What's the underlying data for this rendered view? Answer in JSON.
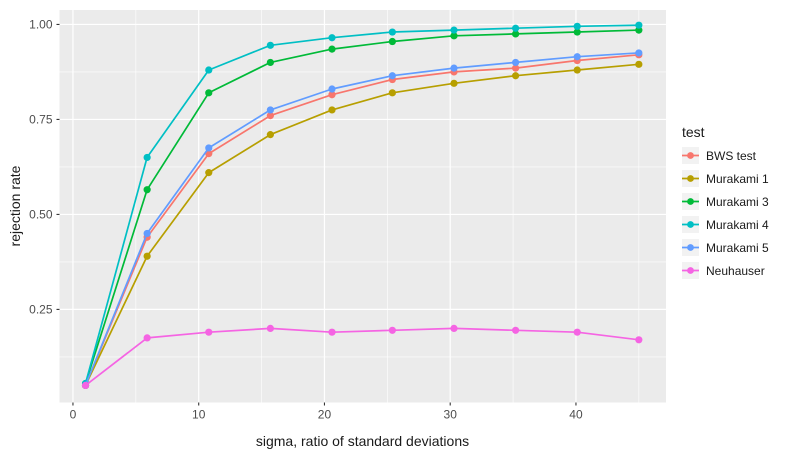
{
  "chart_data": {
    "type": "line",
    "title": "",
    "xlabel": "sigma, ratio of standard deviations",
    "ylabel": "rejection rate",
    "legend": {
      "title": "test",
      "position": "right"
    },
    "x": [
      1,
      5.9,
      10.8,
      15.7,
      20.6,
      25.4,
      30.3,
      35.2,
      40.1,
      45
    ],
    "series": [
      {
        "name": "BWS test",
        "color": "#F8766D",
        "values": [
          0.05,
          0.44,
          0.66,
          0.76,
          0.815,
          0.855,
          0.875,
          0.885,
          0.905,
          0.92
        ]
      },
      {
        "name": "Murakami 1",
        "color": "#B79F00",
        "values": [
          0.05,
          0.39,
          0.61,
          0.71,
          0.775,
          0.82,
          0.845,
          0.865,
          0.88,
          0.895
        ]
      },
      {
        "name": "Murakami 3",
        "color": "#00BA38",
        "values": [
          0.055,
          0.565,
          0.82,
          0.9,
          0.935,
          0.955,
          0.97,
          0.975,
          0.98,
          0.985
        ]
      },
      {
        "name": "Murakami 4",
        "color": "#00BFC4",
        "values": [
          0.055,
          0.65,
          0.88,
          0.945,
          0.965,
          0.98,
          0.985,
          0.99,
          0.995,
          0.998
        ]
      },
      {
        "name": "Murakami 5",
        "color": "#619CFF",
        "values": [
          0.05,
          0.45,
          0.675,
          0.775,
          0.83,
          0.865,
          0.885,
          0.9,
          0.915,
          0.925
        ]
      },
      {
        "name": "Neuhauser",
        "color": "#F564E3",
        "values": [
          0.05,
          0.175,
          0.19,
          0.2,
          0.19,
          0.195,
          0.2,
          0.195,
          0.19,
          0.17
        ]
      }
    ],
    "x_ticks": {
      "major": [
        0,
        10,
        20,
        30,
        40
      ],
      "minor": [
        5,
        15,
        25,
        35,
        45
      ],
      "labels": [
        "0",
        "10",
        "20",
        "30",
        "40"
      ]
    },
    "y_ticks": {
      "major": [
        0.25,
        0.5,
        0.75,
        1.0
      ],
      "minor": [
        0.125,
        0.375,
        0.625,
        0.875
      ],
      "labels": [
        "0.25",
        "0.50",
        "0.75",
        "1.00"
      ]
    },
    "xlim": [
      -1.07,
      47.16
    ],
    "ylim": [
      0.005,
      1.038
    ],
    "grid": true,
    "colors": {
      "panel_bg": "#EBEBEB",
      "grid": "#FFFFFF",
      "tick_mark": "#333333",
      "tick_text": "#4D4D4D",
      "axis_title_text": "#1A1A1A",
      "legend_key_bg": "#F2F2F2",
      "background": "#FFFFFF"
    }
  }
}
